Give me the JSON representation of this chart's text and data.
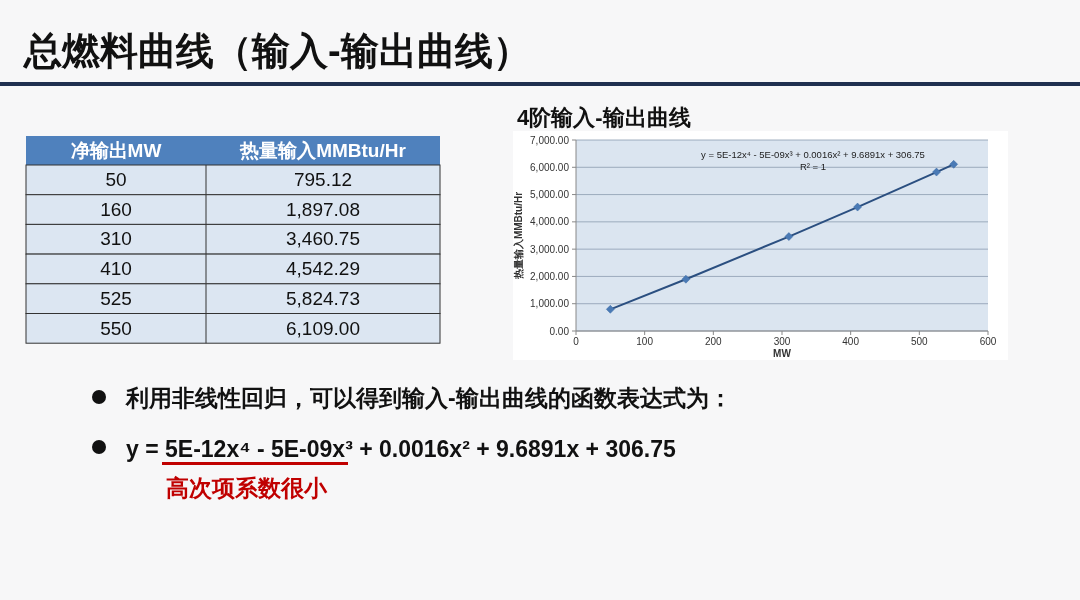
{
  "chart_data": [
    {
      "type": "other",
      "annotations": [
        "净输出MW",
        "热量输入MMBtu/Hr",
        "50",
        "795.12",
        "160",
        "1,897.08",
        "310",
        "3,460.75",
        "410",
        "4,542.29",
        "525",
        "5,824.73",
        "550",
        "6,109.00"
      ]
    },
    {
      "type": "line",
      "title": "总燃料曲线（输入-输出曲线）",
      "subtitle": "4阶输入-输出曲线",
      "xlabel": "MW",
      "ylabel": "热量输入MMBtu/Hr",
      "x": [
        50,
        160,
        310,
        410,
        525,
        550
      ],
      "series": [
        {
          "color": "#2b4f80",
          "values": [
            795,
            1897,
            3461,
            4542,
            5825,
            6109
          ]
        }
      ],
      "xlim": [
        0,
        600
      ],
      "xticks": [
        0,
        100,
        200,
        300,
        400,
        500,
        600
      ],
      "ylim": [
        0,
        7000
      ],
      "yticks": [
        {
          "value": 0,
          "label": "0.00"
        },
        {
          "value": 1000,
          "label": "1,000.00"
        },
        {
          "value": 2000,
          "label": "2,000.00"
        },
        {
          "value": 3000,
          "label": "3,000.00"
        },
        {
          "value": 4000,
          "label": "4,000.00"
        },
        {
          "value": 5000,
          "label": "5,000.00"
        },
        {
          "value": 6000,
          "label": "6,000.00"
        },
        {
          "value": 7000,
          "label": "7,000.00"
        }
      ],
      "grid": "y",
      "marker": "diamond",
      "line_style": "solid",
      "annotations": [
        "y = 5E-12x⁴ - 5E-09x³ + 0.0016x² + 9.6891x + 306.75",
        "R² = 1",
        "利用非线性回归，可以得到输入-输出曲线的函数表达式为：",
        "y = 5E-12x⁴ - 5E-09x³ + 0.0016x² + 9.6891x + 306.75",
        "高次项系数很小"
      ]
    }
  ]
}
